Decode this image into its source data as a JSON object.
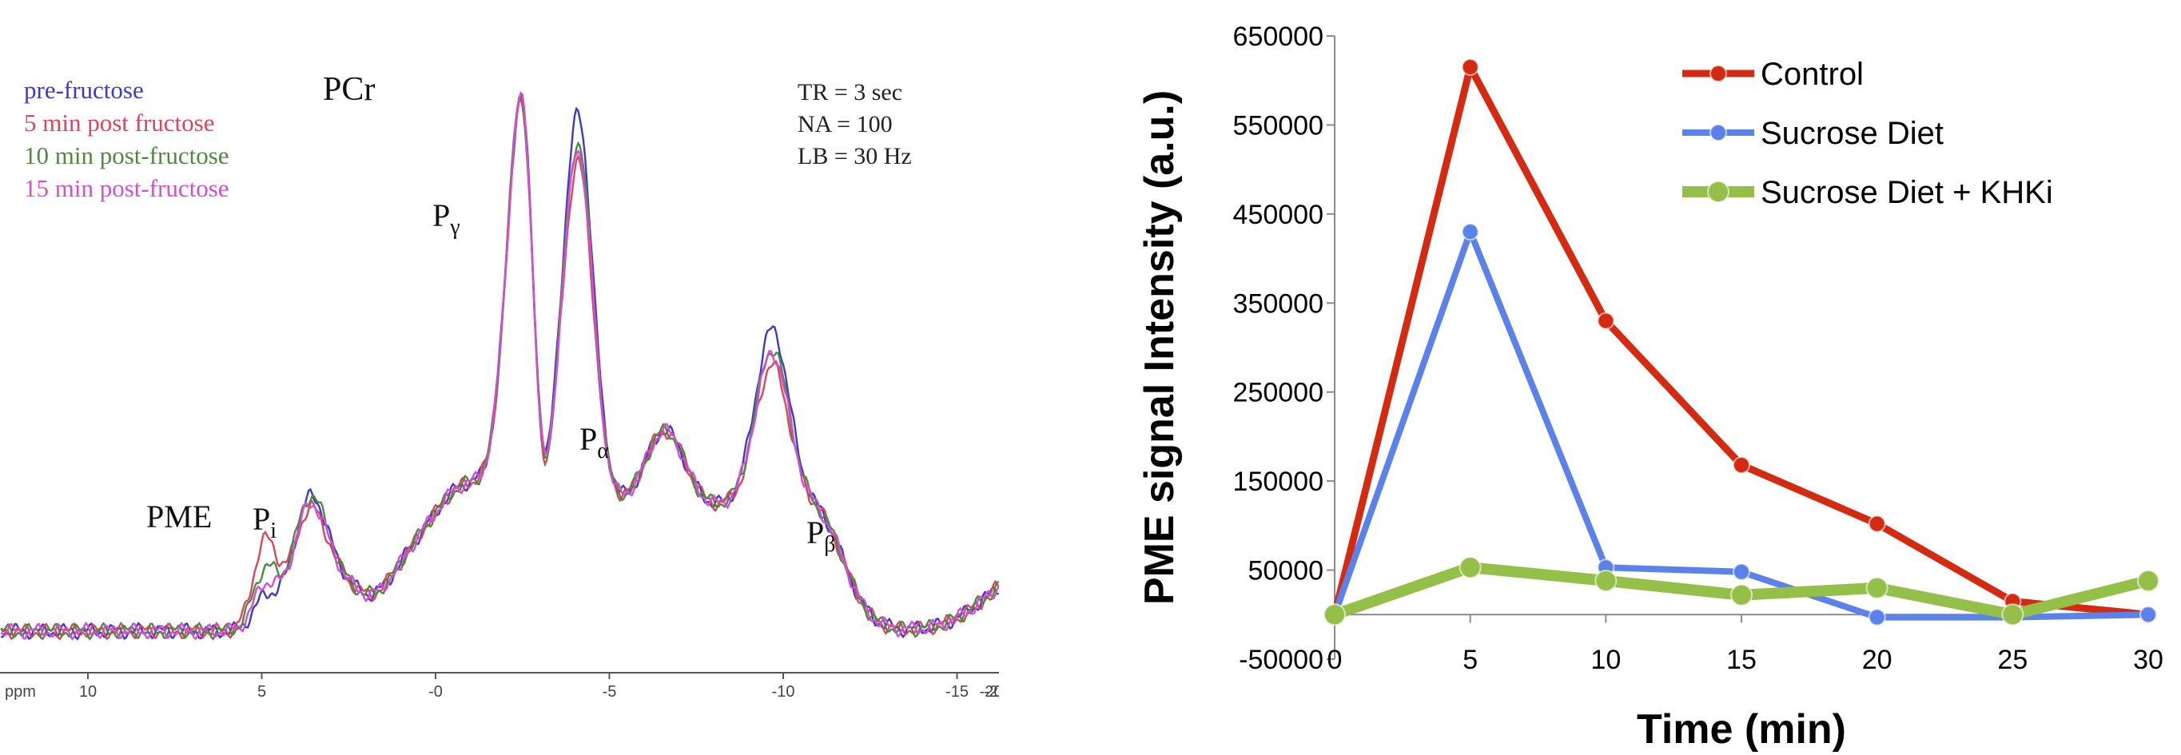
{
  "chart_data": [
    {
      "type": "line",
      "title": "",
      "xlabel": "ppm",
      "ylabel": "",
      "x_ticks": [
        "10",
        "5",
        "-0",
        "-5",
        "-10",
        "-15",
        "-20",
        "-2"
      ],
      "xlim": [
        13,
        -22
      ],
      "x_reversed": true,
      "legend_position": "top-left",
      "series": [
        {
          "name": "pre-fructose",
          "color": "#3a3acf"
        },
        {
          "name": "5 min post fructose",
          "color": "#d9485a"
        },
        {
          "name": "10 min post-fructose",
          "color": "#4e8a3e"
        },
        {
          "name": "15 min post-fructose",
          "color": "#d24fd0"
        }
      ],
      "peak_labels": [
        {
          "text": "PME",
          "sub": ""
        },
        {
          "text": "P",
          "sub": "i"
        },
        {
          "text": "PCr",
          "sub": ""
        },
        {
          "text": "P",
          "sub": "γ"
        },
        {
          "text": "P",
          "sub": "α"
        },
        {
          "text": "P",
          "sub": "β"
        }
      ],
      "params": [
        "TR = 3 sec",
        "NA = 100",
        "LB = 30 Hz"
      ]
    },
    {
      "type": "line",
      "title": "",
      "xlabel": "Time (min)",
      "ylabel": "PME signal Intensity (a.u.)",
      "x": [
        0,
        5,
        10,
        15,
        20,
        25,
        30
      ],
      "x_ticks": [
        "0",
        "5",
        "10",
        "15",
        "20",
        "25",
        "30"
      ],
      "xlim": [
        0,
        30
      ],
      "ylim": [
        -50000,
        650000
      ],
      "y_ticks": [
        "650000",
        "550000",
        "450000",
        "350000",
        "250000",
        "150000",
        "50000",
        "-50000"
      ],
      "grid": false,
      "legend_position": "top-right",
      "series": [
        {
          "name": "Control",
          "color": "#d42a12",
          "values": [
            0,
            615000,
            330000,
            168000,
            102000,
            15000,
            0
          ]
        },
        {
          "name": "Sucrose Diet",
          "color": "#5a82ea",
          "values": [
            0,
            430000,
            53000,
            48000,
            -3000,
            -3000,
            0
          ]
        },
        {
          "name": "Sucrose Diet + KHKi",
          "color": "#94c04a",
          "values": [
            0,
            53000,
            38000,
            22000,
            30000,
            0,
            38000
          ]
        }
      ]
    }
  ]
}
